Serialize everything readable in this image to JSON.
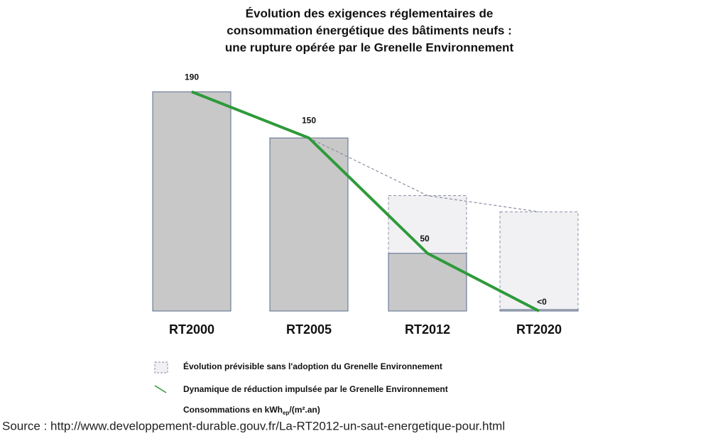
{
  "chart_data": {
    "type": "bar",
    "title": [
      "Évolution des exigences réglementaires de",
      "consommation énergétique des bâtiments neufs :",
      "une rupture opérée par le Grenelle Environnement"
    ],
    "categories": [
      "RT2000",
      "RT2005",
      "RT2012",
      "RT2020"
    ],
    "values": [
      190,
      150,
      50,
      0
    ],
    "value_labels": [
      "190",
      "150",
      "50",
      "<0"
    ],
    "color": "#c8c8c8",
    "ylim": [
      0,
      200
    ],
    "series": [
      {
        "name": "Évolution prévisible sans l'adoption du Grenelle Environnement",
        "color": "#8a8fa0",
        "values": [
          null,
          null,
          100,
          86
        ]
      },
      {
        "name": "Dynamique de réduction impulsée par le Grenelle Environnement",
        "color": "#2e9a3a",
        "values": [
          190,
          150,
          50,
          0
        ]
      }
    ],
    "unit_label": [
      "Consommations en kWh",
      "ep",
      "/(m².an)"
    ],
    "source": "Source : http://www.developpement-durable.gouv.fr/La-RT2012-un-saut-energetique-pour.html"
  }
}
